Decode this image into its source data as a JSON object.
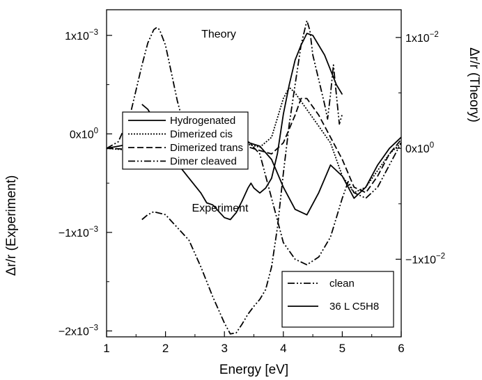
{
  "chart_data": [
    {
      "panel": "theory",
      "type": "line",
      "annotation": "Theory",
      "ylabel": "Δr/r (Theory)",
      "ylim": [
        -0.017,
        0.0125
      ],
      "yticks": [
        {
          "v": 0.01,
          "m": "1x10",
          "e": "−2"
        },
        {
          "v": 0,
          "m": "0x10",
          "e": "0"
        },
        {
          "v": -0.01,
          "m": "−1x10",
          "e": "−2"
        }
      ],
      "xlim": [
        1,
        6
      ],
      "legend_position": "left",
      "series": [
        {
          "name": "Hydrogenated",
          "style": "solid",
          "x": [
            1,
            1.5,
            2,
            2.5,
            2.8,
            3,
            3.3,
            3.6,
            3.8,
            4,
            4.2,
            4.4,
            4.6,
            4.8,
            5,
            5.2,
            5.4,
            5.6,
            5.8,
            6
          ],
          "y": [
            0,
            0.0005,
            0.0009,
            0.0011,
            0.0011,
            0.001,
            0.0007,
            0.0002,
            -0.001,
            -0.0035,
            -0.0055,
            -0.006,
            -0.004,
            -0.0015,
            -0.0025,
            -0.0045,
            -0.0035,
            -0.0015,
            0,
            0.001
          ]
        },
        {
          "name": "Dimerized cis",
          "style": "dotted",
          "x": [
            1,
            1.5,
            2,
            2.5,
            2.8,
            3,
            3.3,
            3.6,
            3.8,
            4,
            4.1,
            4.2,
            4.4,
            4.6,
            4.8,
            5,
            5.2,
            5.4,
            5.6,
            5.8,
            6
          ],
          "y": [
            0,
            -0.0002,
            -0.0005,
            0.0002,
            0.0007,
            0.0008,
            0.0005,
            0.0001,
            0.001,
            0.0045,
            0.0055,
            0.005,
            0.0035,
            0.002,
            0.0005,
            -0.0025,
            -0.004,
            -0.0035,
            -0.002,
            -0.0005,
            0.0005
          ]
        },
        {
          "name": "Dimerized trans",
          "style": "dashed",
          "x": [
            1,
            1.5,
            2,
            2.5,
            2.8,
            3,
            3.3,
            3.6,
            3.8,
            4,
            4.2,
            4.3,
            4.4,
            4.6,
            4.8,
            5,
            5.2,
            5.4,
            5.6,
            5.8,
            6
          ],
          "y": [
            0,
            -0.0001,
            -0.0003,
            0.0001,
            0.0005,
            0.0006,
            0.0003,
            -0.0002,
            -0.0005,
            0.0005,
            0.003,
            0.0045,
            0.0045,
            0.003,
            0.001,
            -0.001,
            -0.0035,
            -0.004,
            -0.0025,
            -0.0005,
            0.0008
          ]
        },
        {
          "name": "Dimer cleaved",
          "style": "dash-dot-dot",
          "x": [
            1,
            1.2,
            1.4,
            1.6,
            1.7,
            1.8,
            1.85,
            1.9,
            2,
            2.1,
            2.2,
            2.3,
            2.5,
            2.8,
            3,
            3.3,
            3.6,
            3.8,
            4,
            4.2,
            4.4,
            4.6,
            4.8,
            5,
            5.1,
            5.2,
            5.4,
            5.6,
            5.8,
            6
          ],
          "y": [
            0,
            0.0006,
            0.003,
            0.0075,
            0.0095,
            0.0107,
            0.0109,
            0.0107,
            0.0093,
            0.0068,
            0.0043,
            0.0023,
            0.0008,
            0.001,
            0.0015,
            0.0012,
            -0.0005,
            -0.0045,
            -0.0085,
            -0.01,
            -0.0105,
            -0.0098,
            -0.008,
            -0.0045,
            -0.003,
            -0.004,
            -0.0045,
            -0.0035,
            -0.0015,
            0.0005
          ]
        }
      ]
    },
    {
      "panel": "experiment",
      "type": "line",
      "annotation": "Experiment",
      "xlabel": "Energy [eV]",
      "ylabel": "Δr/r (Experiment)",
      "xlim": [
        1,
        6
      ],
      "xticks": [
        1,
        2,
        3,
        4,
        5,
        6
      ],
      "ylim": [
        -0.00206,
        0.00126
      ],
      "yticks": [
        {
          "v": 0.001,
          "m": "1x10",
          "e": "−3"
        },
        {
          "v": 0,
          "m": "0x10",
          "e": "0"
        },
        {
          "v": -0.001,
          "m": "−1x10",
          "e": "−3"
        },
        {
          "v": -0.002,
          "m": "−2x10",
          "e": "−3"
        }
      ],
      "legend_position": "bottom-right",
      "series": [
        {
          "name": "clean",
          "style": "dash-dot-dot",
          "x": [
            1.6,
            1.7,
            1.8,
            2,
            2.2,
            2.4,
            2.6,
            2.8,
            3,
            3.1,
            3.2,
            3.3,
            3.4,
            3.5,
            3.6,
            3.7,
            3.8,
            3.9,
            4,
            4.1,
            4.2,
            4.3,
            4.4,
            4.45,
            4.5,
            4.6,
            4.7,
            4.75,
            4.8,
            4.85,
            4.9,
            4.95,
            5
          ],
          "y": [
            -0.00087,
            -0.00082,
            -0.00079,
            -0.00082,
            -0.00095,
            -0.00108,
            -0.00135,
            -0.00165,
            -0.00192,
            -0.00203,
            -0.00202,
            -0.00193,
            -0.00183,
            -0.00175,
            -0.00168,
            -0.00158,
            -0.00135,
            -0.00095,
            -0.0004,
            0.0001,
            0.0005,
            0.0009,
            0.00115,
            0.00105,
            0.0008,
            0.00055,
            0.0003,
            0.00015,
            0.0004,
            0.0007,
            0.0004,
            0.0001,
            0.0002
          ]
        },
        {
          "name": "36 L C5H8",
          "style": "solid",
          "x": [
            1.6,
            1.7,
            1.8,
            2,
            2.2,
            2.4,
            2.6,
            2.7,
            2.8,
            3,
            3.1,
            3.2,
            3.3,
            3.4,
            3.45,
            3.5,
            3.6,
            3.7,
            3.8,
            3.9,
            4,
            4.1,
            4.2,
            4.3,
            4.4,
            4.5,
            4.6,
            4.7,
            4.8,
            4.9,
            5
          ],
          "y": [
            0.0003,
            0.00025,
            0.00015,
            -0.0001,
            -0.0003,
            -0.00045,
            -0.0006,
            -0.0007,
            -0.00072,
            -0.00085,
            -0.00087,
            -0.0008,
            -0.00068,
            -0.00055,
            -0.0005,
            -0.00055,
            -0.0006,
            -0.00055,
            -0.00045,
            -0.0002,
            0.0002,
            0.0005,
            0.00075,
            0.0009,
            0.00102,
            0.001,
            0.0009,
            0.0008,
            0.00065,
            0.0005,
            0.0004
          ]
        }
      ]
    }
  ]
}
